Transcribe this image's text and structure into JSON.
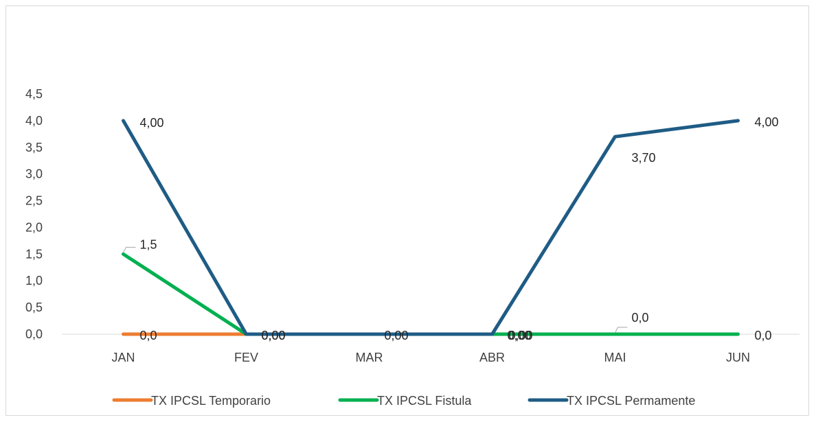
{
  "chart_data": {
    "type": "line",
    "title": "",
    "xlabel": "",
    "ylabel": "",
    "categories": [
      "JAN",
      "FEV",
      "MAR",
      "ABR",
      "MAI",
      "JUN"
    ],
    "ylim": [
      0,
      4.5
    ],
    "yticks": [
      "0,0",
      "0,5",
      "1,0",
      "1,5",
      "2,0",
      "2,5",
      "3,0",
      "3,5",
      "4,0",
      "4,5"
    ],
    "grid": false,
    "legend_position": "bottom",
    "series": [
      {
        "name": "TX IPCSL Temporario",
        "color": "#ED7D31",
        "values": [
          0,
          0,
          null,
          null,
          null,
          null
        ],
        "labels": [
          "0,0",
          "0,00",
          null,
          null,
          null,
          null
        ]
      },
      {
        "name": "TX IPCSL Fistula",
        "color": "#00B050",
        "values": [
          1.5,
          0,
          null,
          0,
          0,
          0
        ],
        "labels": [
          "1,5",
          null,
          null,
          "0,00",
          "0,0",
          "0,0"
        ]
      },
      {
        "name": "TX IPCSL Permamente",
        "color": "#1F5C85",
        "values": [
          4.0,
          0,
          0,
          0,
          3.7,
          4.0
        ],
        "labels": [
          "4,00",
          "0,00",
          "0,00",
          "0,00",
          "3,70",
          "4,00"
        ]
      }
    ]
  }
}
